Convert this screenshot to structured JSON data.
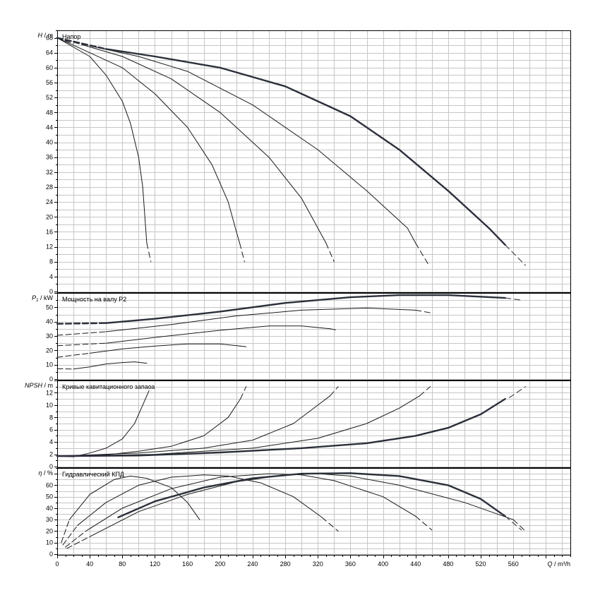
{
  "chart_data": [
    {
      "type": "line",
      "title": "Напор",
      "ylabel_italic": "H",
      "ylabel_unit": "m",
      "ylim": [
        0,
        70
      ],
      "yticks": [
        0,
        4,
        8,
        12,
        16,
        20,
        24,
        28,
        32,
        36,
        40,
        44,
        48,
        52,
        56,
        60,
        64,
        68
      ],
      "grid": true,
      "series": [
        {
          "bold": false,
          "solid": [
            [
              0,
              68
            ],
            [
              40,
              63
            ],
            [
              60,
              58
            ],
            [
              80,
              51
            ],
            [
              90,
              45
            ],
            [
              100,
              36
            ],
            [
              105,
              28
            ],
            [
              110,
              13
            ]
          ],
          "dashed": [
            [
              0,
              68
            ],
            [
              4,
              67.6
            ]
          ],
          "tail": [
            [
              110,
              13
            ],
            [
              115,
              8
            ]
          ]
        },
        {
          "bold": false,
          "solid": [
            [
              0,
              68
            ],
            [
              40,
              64
            ],
            [
              80,
              60
            ],
            [
              120,
              53
            ],
            [
              160,
              44
            ],
            [
              190,
              34
            ],
            [
              210,
              24
            ],
            [
              220,
              16
            ],
            [
              224,
              13
            ]
          ],
          "dashed": [
            [
              0,
              68
            ],
            [
              20,
              66.4
            ]
          ],
          "tail": [
            [
              224,
              13
            ],
            [
              230,
              8
            ]
          ]
        },
        {
          "bold": false,
          "solid": [
            [
              30,
              66.2
            ],
            [
              80,
              63
            ],
            [
              140,
              57
            ],
            [
              200,
              48
            ],
            [
              260,
              36
            ],
            [
              300,
              25
            ],
            [
              330,
              13
            ]
          ],
          "dashed": [
            [
              0,
              68
            ],
            [
              30,
              66.2
            ]
          ],
          "tail": [
            [
              330,
              13
            ],
            [
              340,
              8
            ]
          ]
        },
        {
          "bold": false,
          "solid": [
            [
              45,
              65.6
            ],
            [
              100,
              63
            ],
            [
              160,
              59
            ],
            [
              240,
              50
            ],
            [
              320,
              38
            ],
            [
              380,
              27
            ],
            [
              430,
              17
            ],
            [
              440,
              13
            ]
          ],
          "dashed": [
            [
              0,
              68
            ],
            [
              45,
              65.6
            ]
          ],
          "tail": [
            [
              440,
              13
            ],
            [
              455,
              7.5
            ]
          ]
        },
        {
          "bold": true,
          "solid": [
            [
              60,
              65
            ],
            [
              120,
              63
            ],
            [
              200,
              60
            ],
            [
              280,
              55
            ],
            [
              360,
              47
            ],
            [
              420,
              38
            ],
            [
              480,
              27
            ],
            [
              530,
              17
            ],
            [
              550,
              12.5
            ]
          ],
          "dashed": [
            [
              0,
              68
            ],
            [
              60,
              65
            ]
          ],
          "tail": [
            [
              550,
              12.5
            ],
            [
              575,
              7
            ]
          ]
        }
      ]
    },
    {
      "type": "line",
      "title": "Мощность на валу P2",
      "ylabel_italic": "P",
      "ylabel_sub": "2",
      "ylabel_unit": "kW",
      "ylim": [
        0,
        60
      ],
      "yticks": [
        0,
        10,
        20,
        30,
        40,
        50
      ],
      "grid": true,
      "series": [
        {
          "bold": false,
          "solid": [
            [
              20,
              7
            ],
            [
              40,
              8.5
            ],
            [
              60,
              10.5
            ],
            [
              80,
              11.5
            ],
            [
              95,
              12
            ],
            [
              110,
              11
            ]
          ],
          "dashed": [
            [
              0,
              7.2
            ],
            [
              20,
              7
            ]
          ],
          "tail": []
        },
        {
          "bold": false,
          "solid": [
            [
              40,
              18
            ],
            [
              80,
              21
            ],
            [
              120,
              23
            ],
            [
              160,
              24.5
            ],
            [
              200,
              24.5
            ],
            [
              225,
              23
            ]
          ],
          "dashed": [
            [
              0,
              15.2
            ],
            [
              40,
              18
            ]
          ],
          "tail": [
            [
              225,
              23
            ],
            [
              232,
              22.5
            ]
          ]
        },
        {
          "bold": false,
          "solid": [
            [
              60,
              25
            ],
            [
              120,
              29
            ],
            [
              200,
              34
            ],
            [
              260,
              37
            ],
            [
              300,
              37
            ],
            [
              335,
              35
            ]
          ],
          "dashed": [
            [
              0,
              23.2
            ],
            [
              60,
              25
            ]
          ],
          "tail": [
            [
              335,
              35
            ],
            [
              345,
              34
            ]
          ]
        },
        {
          "bold": false,
          "solid": [
            [
              60,
              33
            ],
            [
              140,
              38
            ],
            [
              220,
              44
            ],
            [
              300,
              48
            ],
            [
              380,
              49.5
            ],
            [
              440,
              48
            ]
          ],
          "dashed": [
            [
              0,
              30.5
            ],
            [
              60,
              33
            ]
          ],
          "tail": [
            [
              440,
              48
            ],
            [
              460,
              46
            ]
          ]
        },
        {
          "bold": true,
          "solid": [
            [
              60,
              39
            ],
            [
              120,
              42
            ],
            [
              200,
              47
            ],
            [
              280,
              53
            ],
            [
              360,
              57
            ],
            [
              420,
              58.5
            ],
            [
              480,
              58.5
            ],
            [
              550,
              56.5
            ]
          ],
          "dashed": [
            [
              0,
              38.5
            ],
            [
              60,
              39
            ]
          ],
          "tail": [
            [
              550,
              56.5
            ],
            [
              570,
              55
            ]
          ]
        }
      ]
    },
    {
      "type": "line",
      "title": "Кривые кавитационного запаса",
      "ylabel_italic": "NPSH",
      "ylabel_unit": "m",
      "ylim": [
        0,
        14
      ],
      "yticks": [
        0,
        2,
        4,
        6,
        8,
        10,
        12
      ],
      "grid": true,
      "series": [
        {
          "bold": false,
          "solid": [
            [
              0,
              1.7
            ],
            [
              20,
              1.6
            ],
            [
              40,
              2.2
            ],
            [
              60,
              3
            ],
            [
              80,
              4.5
            ],
            [
              95,
              7
            ],
            [
              105,
              10
            ],
            [
              110,
              11.5
            ]
          ],
          "dashed": [],
          "tail": [
            [
              110,
              11.5
            ],
            [
              115,
              13
            ]
          ]
        },
        {
          "bold": false,
          "solid": [
            [
              0,
              1.7
            ],
            [
              60,
              1.9
            ],
            [
              100,
              2.5
            ],
            [
              140,
              3.3
            ],
            [
              180,
              5
            ],
            [
              210,
              8
            ],
            [
              225,
              11
            ]
          ],
          "dashed": [],
          "tail": [
            [
              225,
              11
            ],
            [
              232,
              13
            ]
          ]
        },
        {
          "bold": false,
          "solid": [
            [
              0,
              1.7
            ],
            [
              100,
              2.2
            ],
            [
              180,
              3
            ],
            [
              240,
              4.3
            ],
            [
              290,
              7
            ],
            [
              320,
              10
            ],
            [
              335,
              11.5
            ]
          ],
          "dashed": [],
          "tail": [
            [
              335,
              11.5
            ],
            [
              345,
              13
            ]
          ]
        },
        {
          "bold": false,
          "solid": [
            [
              0,
              1.7
            ],
            [
              120,
              2
            ],
            [
              240,
              3
            ],
            [
              320,
              4.6
            ],
            [
              380,
              7
            ],
            [
              420,
              9.5
            ],
            [
              445,
              11.5
            ]
          ],
          "dashed": [],
          "tail": [
            [
              445,
              11.5
            ],
            [
              458,
              13
            ]
          ]
        },
        {
          "bold": true,
          "solid": [
            [
              0,
              1.7
            ],
            [
              100,
              1.8
            ],
            [
              200,
              2.3
            ],
            [
              300,
              3
            ],
            [
              380,
              3.8
            ],
            [
              440,
              5
            ],
            [
              480,
              6.3
            ],
            [
              520,
              8.5
            ],
            [
              550,
              11
            ]
          ],
          "dashed": [],
          "tail": [
            [
              555,
              11.2
            ],
            [
              575,
              13
            ]
          ]
        }
      ]
    },
    {
      "type": "line",
      "title": "Гидравлический КПД",
      "ylabel_italic": "η",
      "ylabel_unit": "%",
      "ylim": [
        0,
        75
      ],
      "yticks": [
        0,
        10,
        20,
        30,
        40,
        50,
        60
      ],
      "grid": true,
      "series": [
        {
          "bold": false,
          "solid": [
            [
              15,
              30
            ],
            [
              40,
              52
            ],
            [
              70,
              65
            ],
            [
              90,
              68
            ],
            [
              110,
              66
            ],
            [
              140,
              58
            ],
            [
              160,
              45
            ],
            [
              175,
              30
            ]
          ],
          "dashed": [
            [
              5,
              10
            ],
            [
              15,
              30
            ]
          ],
          "tail": []
        },
        {
          "bold": false,
          "solid": [
            [
              25,
              25
            ],
            [
              60,
              45
            ],
            [
              100,
              60
            ],
            [
              140,
              67
            ],
            [
              180,
              69
            ],
            [
              210,
              68
            ],
            [
              250,
              62
            ],
            [
              290,
              50
            ],
            [
              325,
              32
            ]
          ],
          "dashed": [
            [
              7,
              8
            ],
            [
              25,
              25
            ]
          ],
          "tail": [
            [
              325,
              32
            ],
            [
              345,
              20
            ]
          ]
        },
        {
          "bold": false,
          "solid": [
            [
              35,
              20
            ],
            [
              80,
              40
            ],
            [
              140,
              57
            ],
            [
              200,
              67
            ],
            [
              260,
              70
            ],
            [
              300,
              69
            ],
            [
              340,
              64
            ],
            [
              400,
              50
            ],
            [
              440,
              33
            ]
          ],
          "dashed": [
            [
              10,
              6
            ],
            [
              35,
              20
            ]
          ],
          "tail": [
            [
              440,
              33
            ],
            [
              460,
              21
            ]
          ]
        },
        {
          "bold": false,
          "solid": [
            [
              45,
              17
            ],
            [
              100,
              37
            ],
            [
              160,
              52
            ],
            [
              220,
              63
            ],
            [
              280,
              69
            ],
            [
              320,
              70
            ],
            [
              360,
              68
            ],
            [
              420,
              60
            ],
            [
              500,
              45
            ],
            [
              560,
              30
            ]
          ],
          "dashed": [
            [
              12,
              5
            ],
            [
              45,
              17
            ]
          ],
          "tail": [
            [
              560,
              30
            ],
            [
              575,
              20
            ]
          ]
        },
        {
          "bold": true,
          "solid": [
            [
              75,
              32
            ],
            [
              120,
              46
            ],
            [
              180,
              58
            ],
            [
              240,
              66
            ],
            [
              300,
              70
            ],
            [
              360,
              70.5
            ],
            [
              420,
              68
            ],
            [
              480,
              60
            ],
            [
              520,
              48
            ],
            [
              550,
              33
            ]
          ],
          "dashed": [],
          "tail": [
            [
              550,
              33
            ],
            [
              570,
              21
            ]
          ]
        }
      ]
    }
  ],
  "x_axis": {
    "label": "Q / m³/h",
    "label_parts": [
      "Q",
      " / m³/h"
    ],
    "xlim": [
      0,
      630
    ],
    "ticks": [
      0,
      40,
      80,
      120,
      160,
      200,
      240,
      280,
      320,
      360,
      400,
      440,
      480,
      520,
      560
    ]
  },
  "colors": {
    "thin": "#1a1a1a",
    "bold": "#2b2f3a",
    "grid": "#c6c6c6"
  }
}
